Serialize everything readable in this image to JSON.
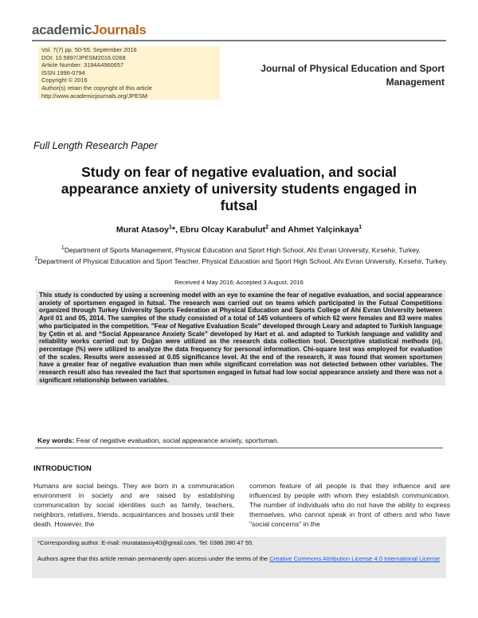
{
  "header": {
    "logo": [
      "academic",
      "Journals"
    ],
    "info": [
      "Vol. 7(7) pp. 50-55, September 2016",
      "DOI: 10.5897/JPESM2016.0268",
      "Article Number: 3194A4960657",
      "ISSN 1996-0794",
      "Copyright © 2016",
      "Author(s) retain the copyright of this article",
      "http://www.academicjournals.org/JPESM"
    ],
    "journal": "Journal of Physical Education and Sport Management"
  },
  "article_type": "Full Length Research Paper",
  "title": "Study on fear of negative evaluation, and social appearance anxiety of university students engaged in futsal",
  "authors": [
    {
      "name": "Murat Atasoy",
      "sup": "1"
    },
    {
      "name": "*, Ebru Olcay Karabulut",
      "sup": "2"
    },
    {
      "name": " and Ahmet Yalçinkaya",
      "sup": "1"
    }
  ],
  "affiliations": [
    {
      "sup": "1",
      "text": "Department of Sports Management, Physical Education and Sport High School, Ahi Evran University, Kırsehir, Turkey."
    },
    {
      "sup": "2",
      "text": "Department of Physical Education and Sport Teacher, Physical Education and Sport High School, Ahi Evran University, Kırsehir, Turkey."
    }
  ],
  "received": "Received 4 May 2016; Accepted 3 August, 2016",
  "abstract": "This study is conducted by using a screening model with an eye to examine the fear of negative evaluation, and social appearance anxiety of sportsmen engaged in futsal. The research was carried out on teams which participated in the Futsal Competitions organized through Turkey University Sports Federation at Physical Education and Sports College of Ahi Evran University between April 01 and 05, 2014. The samples of the study consisted of a total of 145 volunteers of which 62 were females and 83 were males who participated in the competition. \"Fear of Negative Evaluation Scale\" developed through Leary and adapted to Turkish language by Çetin et al. and “Social Appearance Anxiety Scale” developed by Hart et al. and adapted to Turkish language and validity and reliability works carried out by Doğan were utilized as the research data collection tool. Descriptive statistical methods (n), percentage (%) were utilized to analyze the data frequency for personal information. Chi-square test was employed for evaluation of the scales. Results were assessed at 0.05 significance level. At the end of the research, it was found that women sportsmen have a greater fear of negative evaluation than men while significant correlation was not detected between other variables. The research result also has revealed the fact that sportsmen engaged in futsal had low social appearance anxiety and there was not a significant relationship between variables.",
  "keywords": {
    "label": "Key words:",
    "text": " Fear of negative evaluation, social appearance anxiety, sportsman."
  },
  "section": "INTRODUCTION",
  "body": [
    "Humans are social beings. They are born in a communication environment in society and are raised by establishing communication by social identities such as family, teachers, neighbors, relatives, friends, acquaintances and bosses until their death. However, the",
    "common feature of all people is that they influence and are influenced by people with whom they establish communication. The number of individuals who do not have the ability to express themselves, who cannot speak in front of others and who have \"social concerns\" in the"
  ],
  "footer": {
    "corresponding": "*Corresponding author. E-mail: muratatasoy40@gmail.com. Tel: 0386 280 47 55.",
    "license": "Authors agree that this article remain permanently open access under the terms of the ",
    "license_link": "Creative Commons Attribution License 4.0 International License"
  }
}
